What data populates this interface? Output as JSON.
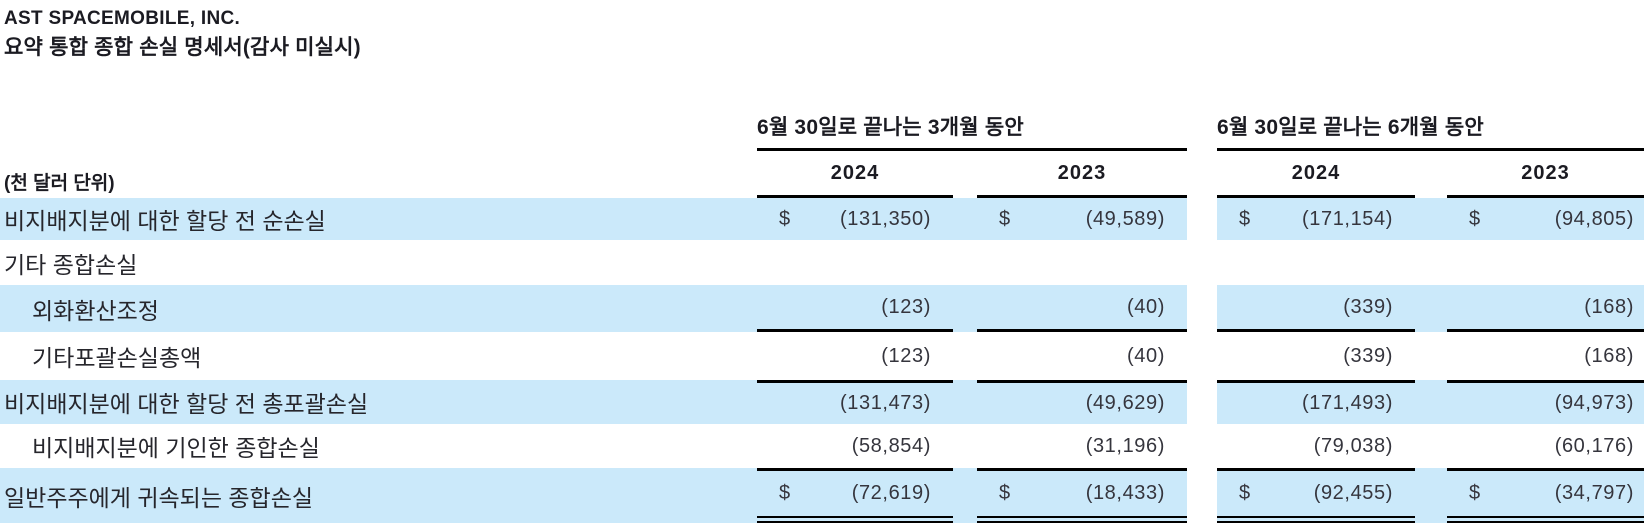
{
  "title": "AST SPACEMOBILE, INC.",
  "subtitle": "요약 통합 종합 손실 명세서(감사 미실시)",
  "units_label": "(천 달러 단위)",
  "currency_symbol": "$",
  "colors": {
    "highlight": "#cbe9fa",
    "border": "#000000",
    "text": "#26262c"
  },
  "col_groups": [
    {
      "label": "6월 30일로 끝나는 3개월 동안",
      "years": [
        "2024",
        "2023"
      ]
    },
    {
      "label": "6월 30일로 끝나는 6개월 동안",
      "years": [
        "2024",
        "2023"
      ]
    }
  ],
  "rows": [
    {
      "label": "비지배지분에 대한 할당 전 순손실",
      "indent": false,
      "highlight": true,
      "currency": true,
      "border_top": false,
      "border_bottom": null,
      "values": [
        "(131,350)",
        "(49,589)",
        "(171,154)",
        "(94,805)"
      ]
    },
    {
      "label": "기타 종합손실",
      "indent": false,
      "highlight": false,
      "currency": false,
      "border_top": false,
      "border_bottom": null,
      "values": [
        "",
        "",
        "",
        ""
      ]
    },
    {
      "label": "외화환산조정",
      "indent": true,
      "highlight": true,
      "currency": false,
      "border_top": false,
      "border_bottom": "single",
      "values": [
        "(123)",
        "(40)",
        "(339)",
        "(168)"
      ]
    },
    {
      "label": "기타포괄손실총액",
      "indent": true,
      "highlight": false,
      "currency": false,
      "border_top": false,
      "border_bottom": null,
      "values": [
        "(123)",
        "(40)",
        "(339)",
        "(168)"
      ]
    },
    {
      "label": "비지배지분에 대한 할당 전 총포괄손실",
      "indent": false,
      "highlight": true,
      "currency": false,
      "border_top": true,
      "border_bottom": null,
      "values": [
        "(131,473)",
        "(49,629)",
        "(171,493)",
        "(94,973)"
      ]
    },
    {
      "label": "비지배지분에 기인한 종합손실",
      "indent": true,
      "highlight": false,
      "currency": false,
      "border_top": false,
      "border_bottom": null,
      "values": [
        "(58,854)",
        "(31,196)",
        "(79,038)",
        "(60,176)"
      ]
    },
    {
      "label": "일반주주에게 귀속되는 종합손실",
      "indent": false,
      "highlight": true,
      "currency": true,
      "border_top": true,
      "border_bottom": "double",
      "values": [
        "(72,619)",
        "(18,433)",
        "(92,455)",
        "(34,797)"
      ]
    }
  ]
}
